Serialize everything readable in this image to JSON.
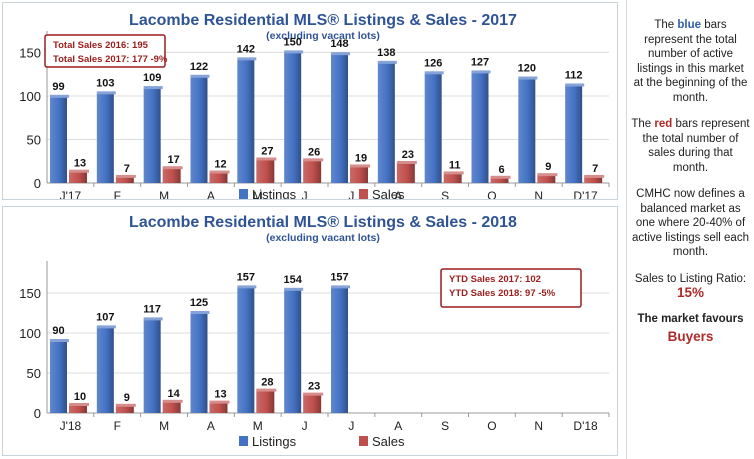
{
  "charts": [
    {
      "title": "Lacombe Residential MLS® Listings & Sales - 2017",
      "subtitle": "(excluding vacant lots)",
      "callout": [
        "Total Sales 2016: 195",
        "Total Sales 2017: 177 -9%"
      ],
      "legend": [
        "Listings",
        "Sales"
      ]
    },
    {
      "title": "Lacombe Residential MLS® Listings & Sales - 2018",
      "subtitle": "(excluding vacant lots)",
      "callout": [
        "YTD Sales 2017: 102",
        "YTD Sales 2018: 97 -5%"
      ],
      "legend": [
        "Listings",
        "Sales"
      ]
    }
  ],
  "colors": {
    "listings": "#4472c4",
    "sales": "#c0504d",
    "title": "#2f5496",
    "callout_border": "#9c1c1c",
    "callout_text": "#9c1c1c"
  },
  "chart_data": [
    {
      "type": "bar",
      "categories": [
        "J'17",
        "F",
        "M",
        "A",
        "M",
        "J",
        "J",
        "A",
        "S",
        "O",
        "N",
        "D'17"
      ],
      "series": [
        {
          "name": "Listings",
          "values": [
            99,
            103,
            109,
            122,
            142,
            150,
            148,
            138,
            126,
            127,
            120,
            112
          ]
        },
        {
          "name": "Sales",
          "values": [
            13,
            7,
            17,
            12,
            27,
            26,
            19,
            23,
            11,
            6,
            9,
            7
          ]
        }
      ],
      "ylim": [
        0,
        170
      ],
      "yticks": [
        0,
        50,
        100,
        150
      ],
      "legend": "bottom"
    },
    {
      "type": "bar",
      "categories": [
        "J'18",
        "F",
        "M",
        "A",
        "M",
        "J",
        "J",
        "A",
        "S",
        "O",
        "N",
        "D'18"
      ],
      "series": [
        {
          "name": "Listings",
          "values": [
            90,
            107,
            117,
            125,
            157,
            154,
            157,
            null,
            null,
            null,
            null,
            null
          ]
        },
        {
          "name": "Sales",
          "values": [
            10,
            9,
            14,
            13,
            28,
            23,
            null,
            null,
            null,
            null,
            null,
            null
          ]
        }
      ],
      "ylim": [
        0,
        185
      ],
      "yticks": [
        0,
        50,
        100,
        150
      ],
      "legend": "bottom"
    }
  ],
  "sidebar": {
    "p1_a": "The ",
    "p1_b": "blue",
    "p1_c": " bars represent the total number of active listings in this market at the beginning of the month.",
    "p2_a": "The ",
    "p2_b": "red",
    "p2_c": " bars represent the total number of sales during that month.",
    "p3": "CMHC now defines a balanced market as one where 20-40% of active listings sell each month.",
    "p4": "Sales to Listing Ratio:",
    "ratio": "15%",
    "p5": "The market favours",
    "favours": "Buyers"
  }
}
